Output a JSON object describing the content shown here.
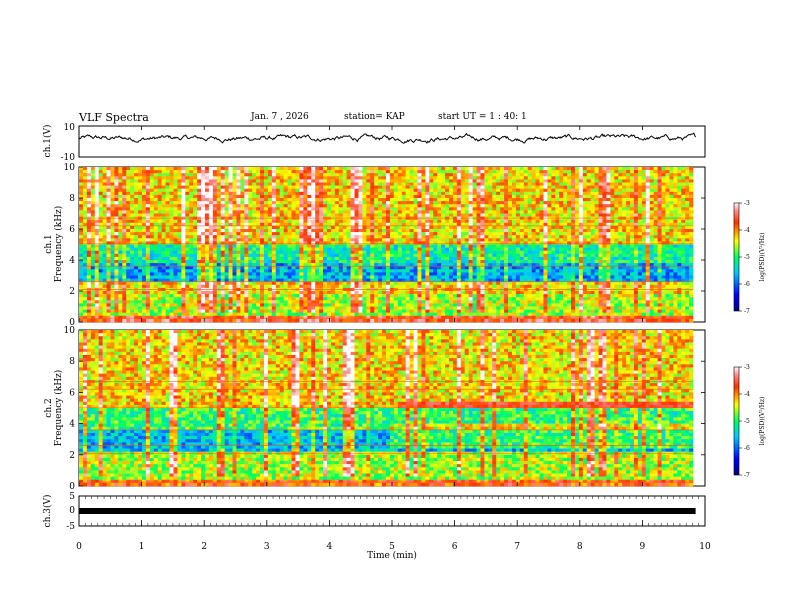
{
  "header": {
    "title": "VLF Spectra",
    "date": "Jan. 7 , 2026",
    "station": "station= KAP",
    "start_ut": "start UT =  1 : 40: 1"
  },
  "chart_data": [
    {
      "panel": "ch1-waveform",
      "type": "line",
      "ylabel": "ch.1(V)",
      "ylim": [
        -10,
        10
      ],
      "yticks": [
        "10",
        "-10"
      ],
      "xlim": [
        0,
        10
      ],
      "data_extent_min": 9.85,
      "description_values": {
        "mean": 2.0,
        "amplitude": 4.0
      }
    },
    {
      "panel": "ch1-spectrogram",
      "type": "heatmap",
      "ylabel": "ch.1\nFrequency (kHz)",
      "ylim": [
        0,
        10
      ],
      "yticks": [
        "0",
        "2",
        "4",
        "6",
        "8",
        "10"
      ],
      "colorbar": {
        "label": "log(PSD)(V²/Hz)",
        "range": [
          -7,
          -3
        ],
        "ticks": [
          "-3",
          "-4",
          "-5",
          "-6",
          "-7"
        ]
      },
      "bands_khz": [
        {
          "from": 0,
          "to": 0.5,
          "level": -3.6
        },
        {
          "from": 0.5,
          "to": 1.8,
          "level": -4.6
        },
        {
          "from": 1.8,
          "to": 2.6,
          "level": -4.3
        },
        {
          "from": 2.6,
          "to": 3.8,
          "level": -5.7
        },
        {
          "from": 3.8,
          "to": 5.0,
          "level": -5.2
        },
        {
          "from": 5.0,
          "to": 10.0,
          "level": -4.3
        }
      ]
    },
    {
      "panel": "ch2-spectrogram",
      "type": "heatmap",
      "ylabel": "ch.2\nFrequency (kHz)",
      "ylim": [
        0,
        10
      ],
      "yticks": [
        "0",
        "2",
        "4",
        "6",
        "8",
        "10"
      ],
      "colorbar": {
        "label": "log(PSD)(V²/Hz)",
        "range": [
          -7,
          -3
        ],
        "ticks": [
          "-3",
          "-4",
          "-5",
          "-6",
          "-7"
        ]
      },
      "enhanced_band": {
        "start_min": 5.1,
        "from_khz": 4.9,
        "to_khz": 5.4,
        "level": -3.6
      }
    },
    {
      "panel": "ch3-signal",
      "type": "line",
      "ylabel": "ch.3(V)",
      "ylim": [
        -5,
        5
      ],
      "yticks": [
        "5",
        "0",
        "-5"
      ],
      "xlim": [
        0,
        10
      ],
      "constant_value": 0,
      "xlabel": "Time (min)",
      "xticks": [
        "0",
        "1",
        "2",
        "3",
        "4",
        "5",
        "6",
        "7",
        "8",
        "9",
        "10"
      ]
    }
  ]
}
